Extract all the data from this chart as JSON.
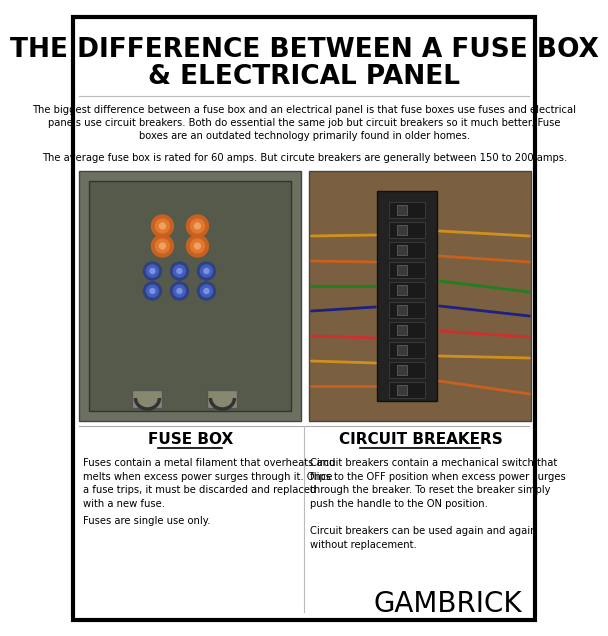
{
  "title_line1": "THE DIFFERENCE BETWEEN A FUSE BOX",
  "title_line2": "& ELECTRICAL PANEL",
  "bg_color": "#ffffff",
  "border_color": "#000000",
  "intro_text": "The biggest difference between a fuse box and an electrical panel is that fuse boxes use fuses and electrical\npanels use circuit breakers. Both do essential the same job but circuit breakers so it much better. Fuse\nboxes are an outdated technology primarily found in older homes.",
  "avg_text": "The average fuse box is rated for 60 amps. But circute breakers are generally between 150 to 200 amps.",
  "left_label": "FUSE BOX",
  "right_label": "CIRCUIT BREAKERS",
  "left_desc1": "Fuses contain a metal filament that overheats and\nmelts when excess power surges through it. Once\na fuse trips, it must be discarded and replaced\nwith a new fuse.",
  "left_desc2": "Fuses are single use only.",
  "right_desc1": "Circuit breakers contain a mechanical switch that\nflips to the OFF position when excess power surges\nthrough the breaker. To reset the breaker simply\npush the handle to the ON position.",
  "right_desc2": "Circuit breakers can be used again and again\nwithout replacement.",
  "brand": "GAMBRICK",
  "left_img_color": "#7a8070",
  "right_img_color": "#6a5a40",
  "title_fontsize": 19,
  "label_fontsize": 11,
  "body_fontsize": 7.2,
  "brand_fontsize": 20
}
